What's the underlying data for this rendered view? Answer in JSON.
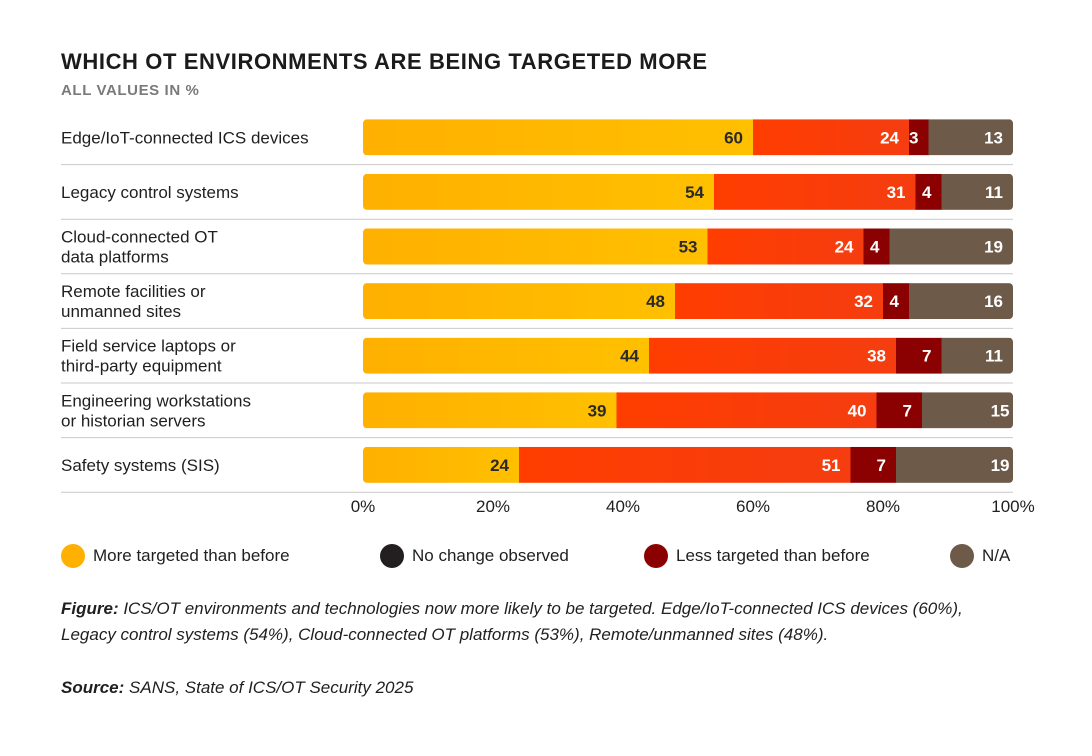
{
  "title": "WHICH OT ENVIRONMENTS ARE BEING TARGETED MORE",
  "subtitle": "ALL VALUES IN %",
  "chart_data": {
    "type": "bar",
    "orientation": "horizontal",
    "stacked": true,
    "categories": [
      [
        "Edge/IoT-connected ICS devices"
      ],
      [
        "Legacy control systems"
      ],
      [
        "Cloud-connected OT",
        "data platforms"
      ],
      [
        "Remote facilities or",
        "unmanned sites"
      ],
      [
        "Field service laptops or",
        "third-party equipment"
      ],
      [
        "Engineering workstations",
        "or historian servers"
      ],
      [
        "Safety systems (SIS)"
      ]
    ],
    "series": [
      {
        "name": "More targeted than before",
        "values": [
          60,
          54,
          53,
          48,
          44,
          39,
          24
        ]
      },
      {
        "name": "Less targeted than before",
        "values": [
          24,
          31,
          24,
          32,
          38,
          40,
          51
        ]
      },
      {
        "name": "No change observed",
        "values": [
          3,
          4,
          4,
          4,
          7,
          7,
          7
        ]
      },
      {
        "name": "N/A",
        "values": [
          13,
          11,
          19,
          16,
          11,
          15,
          19
        ]
      }
    ],
    "x_ticks": [
      "0%",
      "20%",
      "40%",
      "60%",
      "80%",
      "100%"
    ],
    "xlim": [
      0,
      100
    ],
    "grid": false,
    "legend_position": "bottom"
  },
  "legend": [
    {
      "label": "More targeted than before",
      "color": "#ffb000"
    },
    {
      "label": "No change observed",
      "color": "#231f20"
    },
    {
      "label": "Less targeted than before",
      "color": "#8b0000"
    },
    {
      "label": "N/A",
      "color": "#6e5a48"
    }
  ],
  "segment_colors": {
    "more": {
      "from": "#ffb000",
      "to": "#ffc000"
    },
    "less": {
      "from": "#ff3d00",
      "to": "#f53d10"
    },
    "no_change": "#8b0000",
    "na": "#6e5a48"
  },
  "caption": {
    "label": "Figure:",
    "text": " ICS/OT environments and technologies now more likely to be targeted. Edge/IoT-connected ICS devices (60%), Legacy control systems (54%), Cloud-connected OT platforms (53%), Remote/unmanned sites (48%)."
  },
  "source": {
    "label": "Source:",
    "text": " SANS, State of ICS/OT Security 2025"
  }
}
